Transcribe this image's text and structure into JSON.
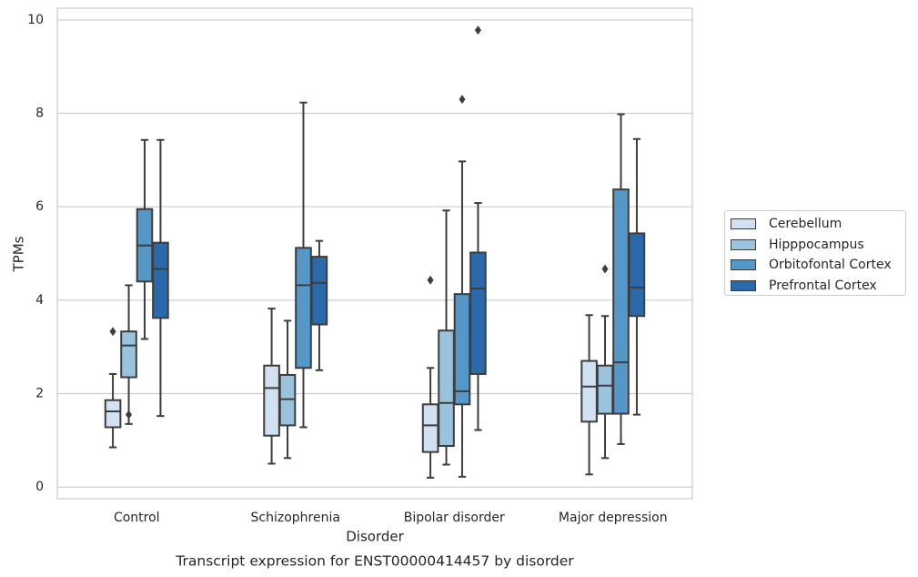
{
  "chart_data": {
    "type": "boxplot",
    "caption": "Transcript expression for ENST00000414457 by disorder",
    "xlabel": "Disorder",
    "ylabel": "TPMs",
    "ylim": [
      -0.25,
      10.25
    ],
    "yticks": [
      0,
      2,
      4,
      6,
      8,
      10
    ],
    "categories": [
      "Control",
      "Schizophrenia",
      "Bipolar disorder",
      "Major depression"
    ],
    "grid": "horizontal",
    "legend_position": "right",
    "series": [
      {
        "name": "Cerebellum",
        "color": "#d1e1f1",
        "boxes": [
          {
            "whislo": 0.85,
            "q1": 1.28,
            "med": 1.62,
            "q3": 1.86,
            "whishi": 2.42,
            "fliers": [
              3.33
            ]
          },
          {
            "whislo": 0.5,
            "q1": 1.1,
            "med": 2.12,
            "q3": 2.6,
            "whishi": 3.82,
            "fliers": []
          },
          {
            "whislo": 0.2,
            "q1": 0.75,
            "med": 1.32,
            "q3": 1.77,
            "whishi": 2.55,
            "fliers": [
              4.43
            ]
          },
          {
            "whislo": 0.27,
            "q1": 1.4,
            "med": 2.15,
            "q3": 2.7,
            "whishi": 3.68,
            "fliers": []
          }
        ]
      },
      {
        "name": "Hipppocampus",
        "color": "#9ac3dd",
        "boxes": [
          {
            "whislo": 1.35,
            "q1": 2.35,
            "med": 3.03,
            "q3": 3.33,
            "whishi": 4.32,
            "fliers": [
              1.55
            ]
          },
          {
            "whislo": 0.62,
            "q1": 1.32,
            "med": 1.88,
            "q3": 2.4,
            "whishi": 3.56,
            "fliers": []
          },
          {
            "whislo": 0.48,
            "q1": 0.88,
            "med": 1.8,
            "q3": 3.35,
            "whishi": 5.92,
            "fliers": []
          },
          {
            "whislo": 0.62,
            "q1": 1.57,
            "med": 2.17,
            "q3": 2.6,
            "whishi": 3.66,
            "fliers": [
              4.67
            ]
          }
        ]
      },
      {
        "name": "Orbitofontal Cortex",
        "color": "#5597c7",
        "boxes": [
          {
            "whislo": 3.17,
            "q1": 4.4,
            "med": 5.17,
            "q3": 5.95,
            "whishi": 7.43,
            "fliers": []
          },
          {
            "whislo": 1.28,
            "q1": 2.55,
            "med": 4.32,
            "q3": 5.12,
            "whishi": 8.23,
            "fliers": []
          },
          {
            "whislo": 0.22,
            "q1": 1.77,
            "med": 2.05,
            "q3": 4.13,
            "whishi": 6.97,
            "fliers": [
              8.3
            ]
          },
          {
            "whislo": 0.92,
            "q1": 1.57,
            "med": 2.67,
            "q3": 6.37,
            "whishi": 7.98,
            "fliers": []
          }
        ]
      },
      {
        "name": "Prefrontal Cortex",
        "color": "#2a6aaa",
        "boxes": [
          {
            "whislo": 1.52,
            "q1": 3.62,
            "med": 4.67,
            "q3": 5.23,
            "whishi": 7.43,
            "fliers": []
          },
          {
            "whislo": 2.5,
            "q1": 3.48,
            "med": 4.37,
            "q3": 4.93,
            "whishi": 5.27,
            "fliers": []
          },
          {
            "whislo": 1.22,
            "q1": 2.42,
            "med": 4.25,
            "q3": 5.02,
            "whishi": 6.08,
            "fliers": [
              9.78
            ]
          },
          {
            "whislo": 1.55,
            "q1": 3.66,
            "med": 4.27,
            "q3": 5.43,
            "whishi": 7.45,
            "fliers": []
          }
        ]
      }
    ]
  }
}
